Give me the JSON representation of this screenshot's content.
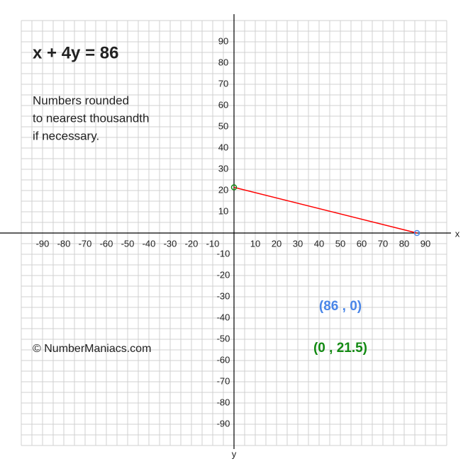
{
  "chart_data": {
    "type": "line",
    "title": "x + 4y = 86",
    "note": [
      "Numbers rounded",
      "to nearest thousandth",
      "if necessary."
    ],
    "copyright": "© NumberManiacs.com",
    "x_label": "x",
    "y_label": "y",
    "x": [
      0,
      86
    ],
    "series": [
      {
        "color": "#ff0000",
        "values": [
          21.5,
          0
        ]
      }
    ],
    "points": [
      {
        "x": 86,
        "y": 0,
        "label": "(86 , 0)",
        "color": "#4a86e8"
      },
      {
        "x": 0,
        "y": 21.5,
        "label": "(0 , 21.5)",
        "color": "#138a13"
      }
    ],
    "xlim": [
      -100,
      100
    ],
    "ylim": [
      -100,
      100
    ],
    "xticks": [
      -90,
      -80,
      -70,
      -60,
      -50,
      -40,
      -30,
      -20,
      -10,
      10,
      20,
      30,
      40,
      50,
      60,
      70,
      80,
      90
    ],
    "yticks": [
      -90,
      -80,
      -70,
      -60,
      -50,
      -40,
      -30,
      -20,
      -10,
      10,
      20,
      30,
      40,
      50,
      60,
      70,
      80,
      90
    ],
    "grid": true
  }
}
